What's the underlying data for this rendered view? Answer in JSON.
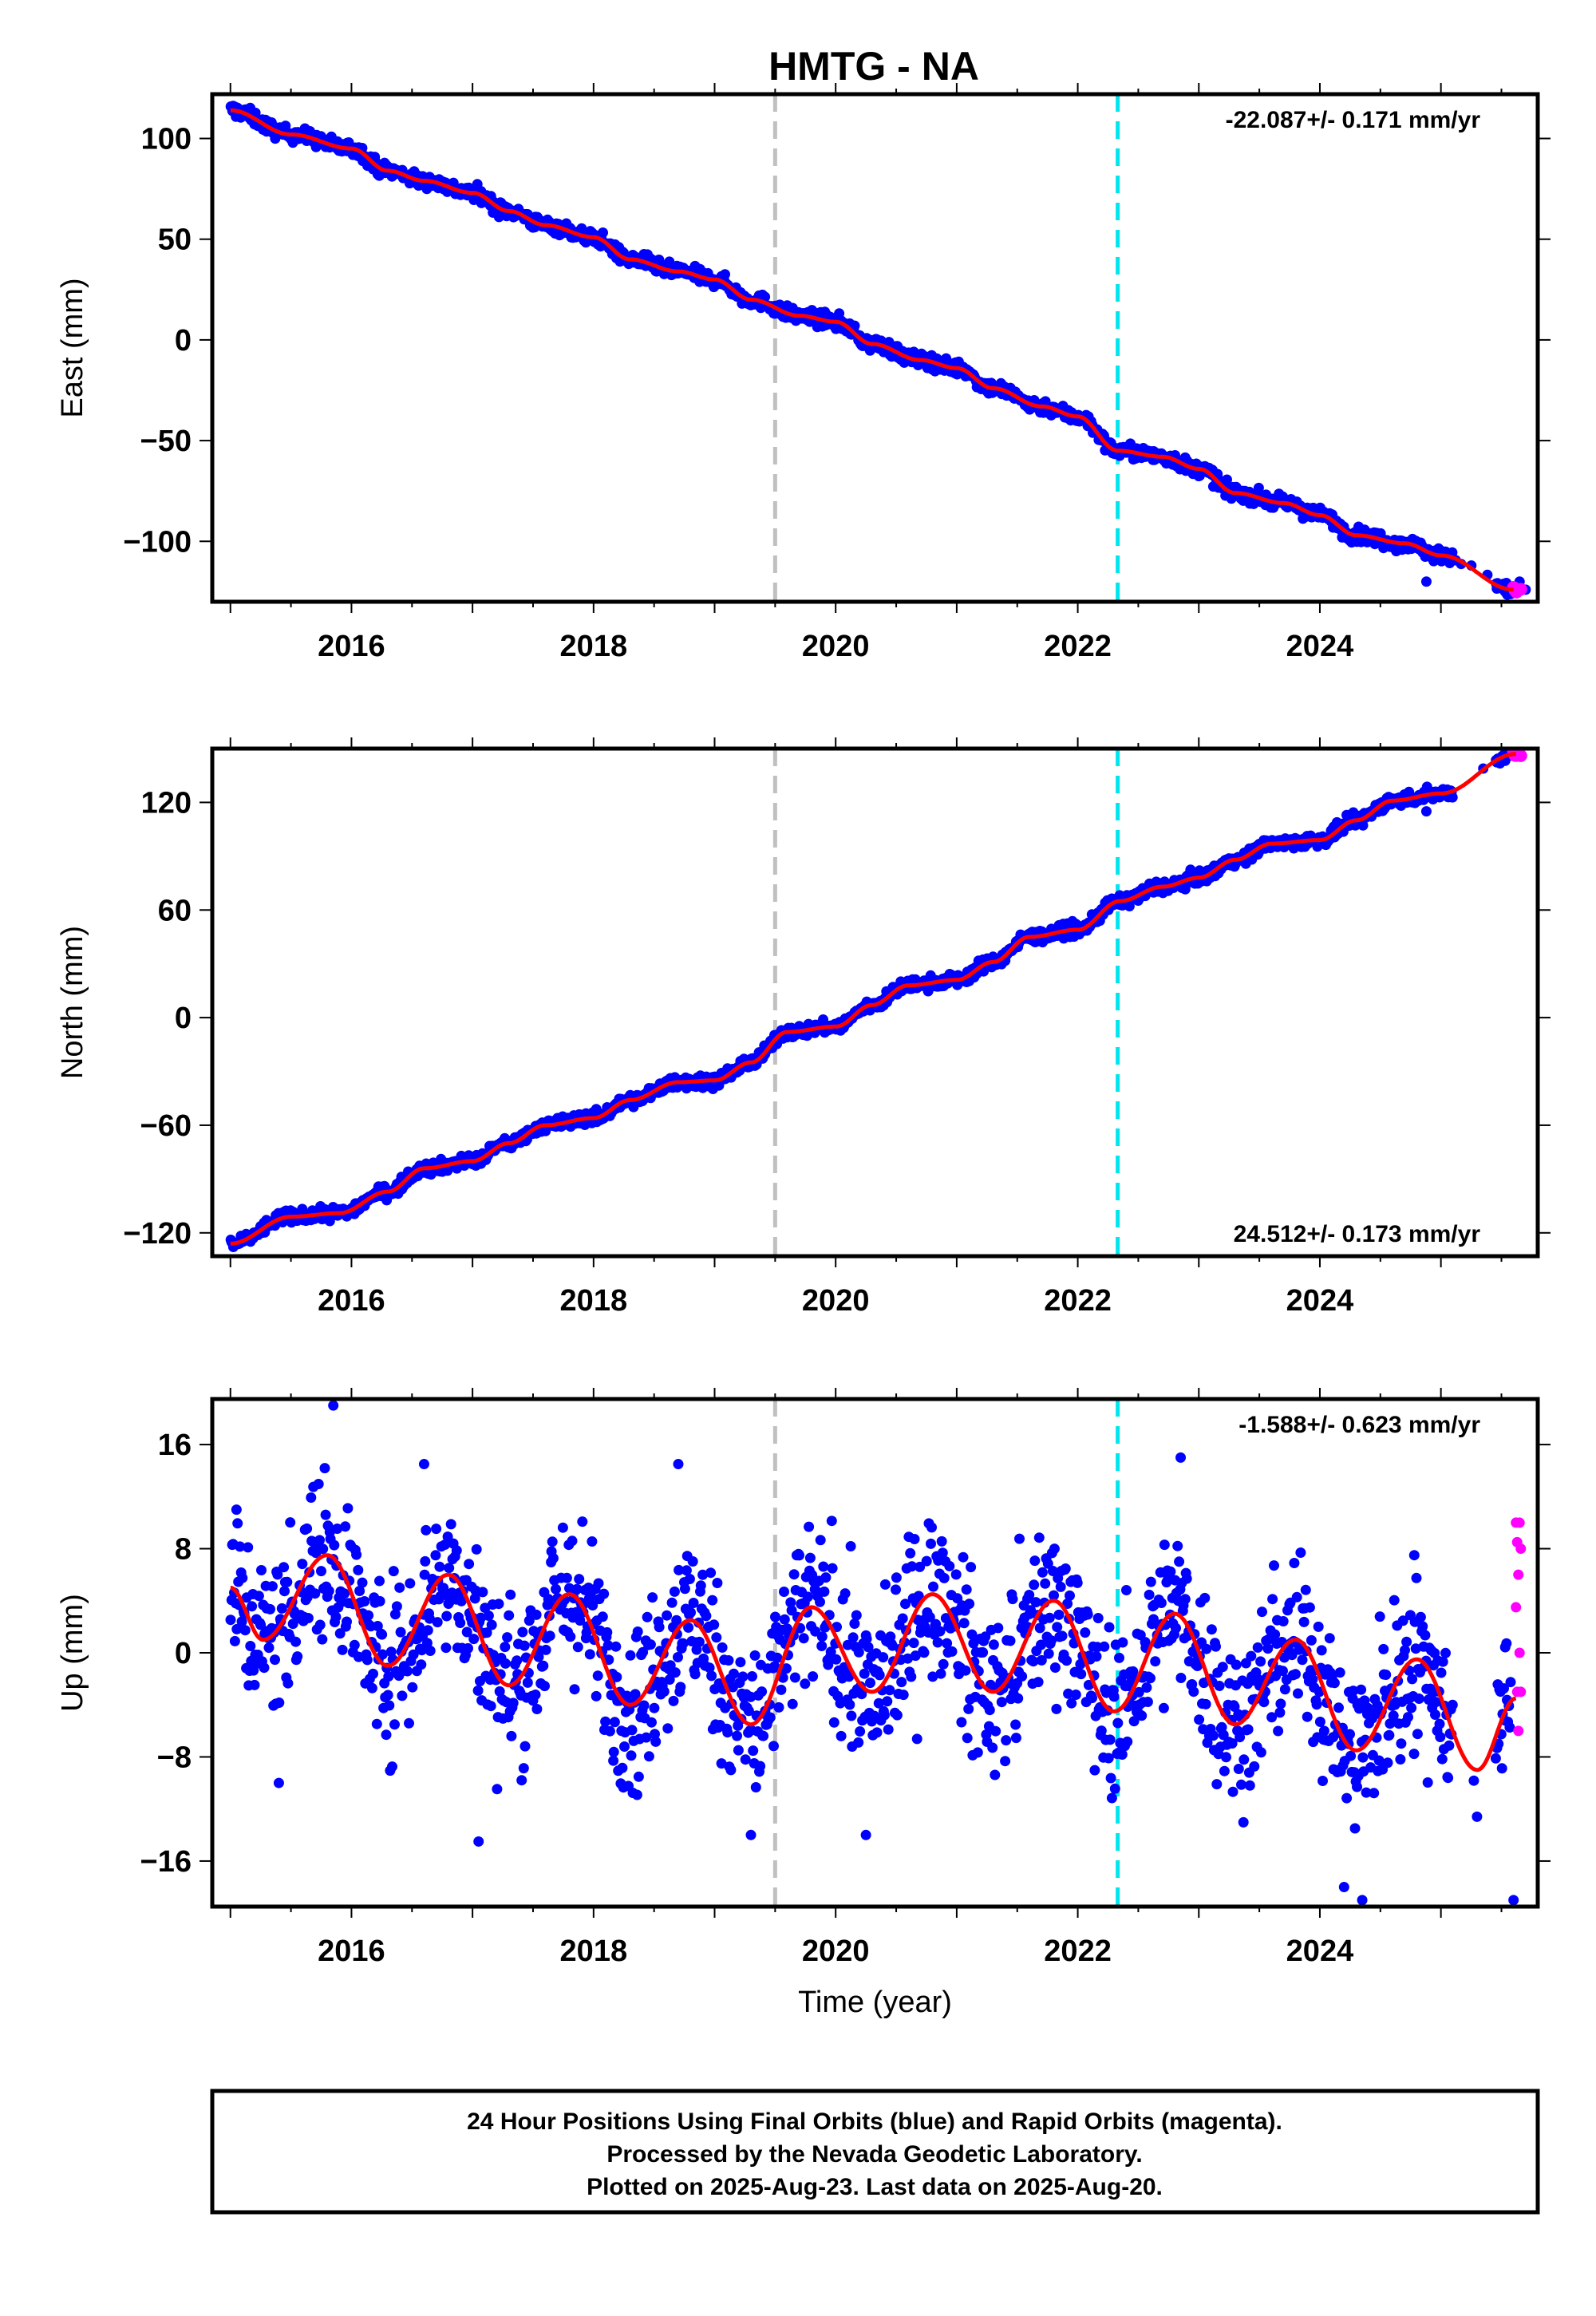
{
  "title": "HMTG - NA",
  "footer": {
    "line1": "24 Hour Positions Using Final Orbits (blue) and Rapid Orbits (magenta).",
    "line2": "Processed by the Nevada Geodetic Laboratory.",
    "line3": "Plotted on 2025-Aug-23. Last data on 2025-Aug-20."
  },
  "colors": {
    "final_orbits": "#0000ff",
    "rapid_orbits": "#ff00ff",
    "model_fit": "#ff0000",
    "event_gray": "#c0c0c0",
    "event_cyan": "#00e5ee"
  },
  "chart_data": [
    {
      "type": "scatter",
      "ylabel": "East (mm)",
      "xlabel": "",
      "xlim": [
        2014.85,
        2025.8
      ],
      "ylim": [
        -130,
        122
      ],
      "x_ticks": [
        2016,
        2018,
        2020,
        2022,
        2024
      ],
      "y_ticks": [
        100,
        50,
        0,
        -50,
        -100
      ],
      "y_tick_labels": [
        "100",
        "50",
        "0",
        "−50",
        "−100"
      ],
      "rate_label": "-22.087+/- 0.171 mm/yr",
      "rate_position": "top-right",
      "event_lines": [
        {
          "x": 2019.5,
          "color": "gray"
        },
        {
          "x": 2022.33,
          "color": "cyan"
        }
      ],
      "fit_knots": [
        [
          2015.0,
          114
        ],
        [
          2015.5,
          102
        ],
        [
          2016.0,
          95
        ],
        [
          2016.3,
          84
        ],
        [
          2016.6,
          79
        ],
        [
          2017.0,
          73
        ],
        [
          2017.3,
          64
        ],
        [
          2017.6,
          57
        ],
        [
          2018.0,
          51
        ],
        [
          2018.3,
          40
        ],
        [
          2018.7,
          34
        ],
        [
          2019.0,
          30
        ],
        [
          2019.3,
          20
        ],
        [
          2019.7,
          12
        ],
        [
          2020.0,
          9
        ],
        [
          2020.3,
          -2
        ],
        [
          2020.7,
          -10
        ],
        [
          2021.0,
          -14
        ],
        [
          2021.3,
          -24
        ],
        [
          2021.7,
          -33
        ],
        [
          2022.0,
          -38
        ],
        [
          2022.33,
          -55
        ],
        [
          2022.7,
          -58
        ],
        [
          2023.0,
          -64
        ],
        [
          2023.3,
          -76
        ],
        [
          2023.7,
          -81
        ],
        [
          2024.0,
          -87
        ],
        [
          2024.3,
          -97
        ],
        [
          2024.7,
          -101
        ],
        [
          2025.0,
          -107
        ],
        [
          2025.6,
          -124
        ]
      ],
      "noise_mm": 1.8,
      "outliers": [
        [
          2024.88,
          -120
        ],
        [
          2025.65,
          -120
        ],
        [
          2025.7,
          -124
        ]
      ]
    },
    {
      "type": "scatter",
      "ylabel": "North (mm)",
      "xlabel": "",
      "xlim": [
        2014.85,
        2025.8
      ],
      "ylim": [
        -133,
        150
      ],
      "x_ticks": [
        2016,
        2018,
        2020,
        2022,
        2024
      ],
      "y_ticks": [
        120,
        60,
        0,
        -60,
        -120
      ],
      "y_tick_labels": [
        "120",
        "60",
        "0",
        "−60",
        "−120"
      ],
      "rate_label": "24.512+/- 0.173 mm/yr",
      "rate_position": "bottom-right",
      "event_lines": [
        {
          "x": 2019.5,
          "color": "gray"
        },
        {
          "x": 2022.33,
          "color": "cyan"
        }
      ],
      "fit_knots": [
        [
          2015.0,
          -126
        ],
        [
          2015.5,
          -111
        ],
        [
          2015.9,
          -109
        ],
        [
          2016.3,
          -97
        ],
        [
          2016.6,
          -84
        ],
        [
          2017.0,
          -80
        ],
        [
          2017.3,
          -70
        ],
        [
          2017.6,
          -60
        ],
        [
          2018.0,
          -56
        ],
        [
          2018.3,
          -46
        ],
        [
          2018.7,
          -36
        ],
        [
          2019.0,
          -35
        ],
        [
          2019.3,
          -25
        ],
        [
          2019.6,
          -8
        ],
        [
          2020.0,
          -5
        ],
        [
          2020.3,
          7
        ],
        [
          2020.6,
          18
        ],
        [
          2021.0,
          21
        ],
        [
          2021.3,
          31
        ],
        [
          2021.6,
          45
        ],
        [
          2022.0,
          49
        ],
        [
          2022.35,
          65
        ],
        [
          2022.7,
          73
        ],
        [
          2023.0,
          78
        ],
        [
          2023.3,
          88
        ],
        [
          2023.6,
          97
        ],
        [
          2024.0,
          99
        ],
        [
          2024.3,
          110
        ],
        [
          2024.6,
          121
        ],
        [
          2025.0,
          125
        ],
        [
          2025.62,
          147
        ]
      ],
      "noise_mm": 1.8,
      "outliers": [
        [
          2024.88,
          115
        ],
        [
          2025.62,
          147
        ]
      ]
    },
    {
      "type": "scatter",
      "ylabel": "Up (mm)",
      "xlabel": "Time (year)",
      "xlim": [
        2014.85,
        2025.8
      ],
      "ylim": [
        -19.5,
        19.5
      ],
      "x_ticks": [
        2016,
        2018,
        2020,
        2022,
        2024
      ],
      "y_ticks": [
        16,
        8,
        0,
        -8,
        -16
      ],
      "y_tick_labels": [
        "16",
        "8",
        "0",
        "−8",
        "−16"
      ],
      "rate_label": "-1.588+/- 0.623 mm/yr",
      "rate_position": "top-right",
      "event_lines": [
        {
          "x": 2019.5,
          "color": "gray"
        },
        {
          "x": 2022.33,
          "color": "cyan"
        }
      ],
      "fit_knots": [
        [
          2015.0,
          5
        ],
        [
          2015.27,
          1
        ],
        [
          2015.8,
          7.5
        ],
        [
          2016.3,
          -1
        ],
        [
          2016.8,
          6
        ],
        [
          2017.3,
          -2.5
        ],
        [
          2017.8,
          4.5
        ],
        [
          2018.3,
          -4
        ],
        [
          2018.8,
          2.5
        ],
        [
          2019.3,
          -5.5
        ],
        [
          2019.8,
          3.5
        ],
        [
          2020.3,
          -3
        ],
        [
          2020.8,
          4.5
        ],
        [
          2021.3,
          -3
        ],
        [
          2021.8,
          4
        ],
        [
          2022.3,
          -4.5
        ],
        [
          2022.8,
          3
        ],
        [
          2023.3,
          -5.5
        ],
        [
          2023.8,
          1
        ],
        [
          2024.3,
          -7.5
        ],
        [
          2024.8,
          -0.5
        ],
        [
          2025.3,
          -9
        ],
        [
          2025.62,
          -3.5
        ]
      ],
      "noise_mm": 3.2,
      "outliers": [
        [
          2015.85,
          19
        ],
        [
          2016.6,
          14.5
        ],
        [
          2018.7,
          14.5
        ],
        [
          2022.85,
          15
        ],
        [
          2015.4,
          -10
        ],
        [
          2017.05,
          -14.5
        ],
        [
          2019.3,
          -14
        ],
        [
          2020.25,
          -14
        ],
        [
          2024.2,
          -18
        ],
        [
          2024.35,
          -19
        ],
        [
          2025.6,
          -19
        ],
        [
          2024.78,
          7.5
        ],
        [
          2015.05,
          11
        ]
      ],
      "rapid_points": [
        [
          2025.62,
          10
        ],
        [
          2025.65,
          10
        ],
        [
          2025.63,
          8.5
        ],
        [
          2025.66,
          8
        ],
        [
          2025.64,
          6
        ],
        [
          2025.62,
          3.5
        ],
        [
          2025.65,
          0
        ],
        [
          2025.63,
          -3
        ],
        [
          2025.66,
          -3
        ],
        [
          2025.64,
          -6
        ]
      ]
    }
  ]
}
